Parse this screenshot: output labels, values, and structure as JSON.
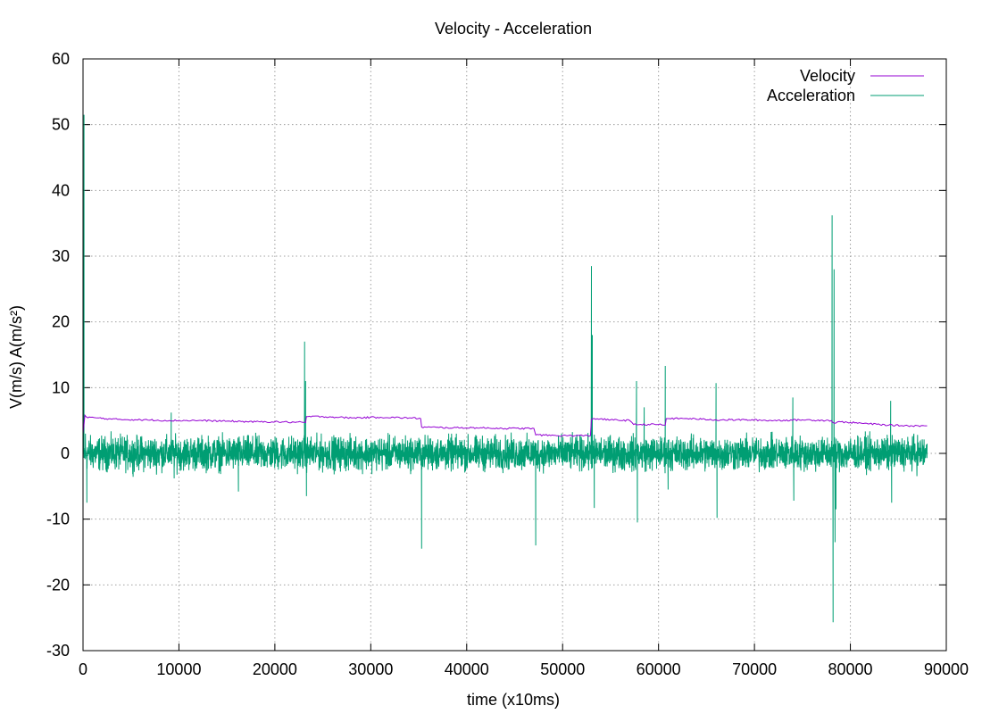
{
  "chart_data": {
    "type": "line",
    "title": "Velocity - Acceleration",
    "xlabel": "time (x10ms)",
    "ylabel": "V(m/s) A(m/s²)",
    "xlim": [
      0,
      90000
    ],
    "ylim": [
      -30,
      60
    ],
    "xticks": [
      0,
      10000,
      20000,
      30000,
      40000,
      50000,
      60000,
      70000,
      80000,
      90000
    ],
    "yticks": [
      -30,
      -20,
      -10,
      0,
      10,
      20,
      30,
      40,
      50,
      60
    ],
    "grid": true,
    "legend": "top-right",
    "series": [
      {
        "name": "Velocity",
        "color": "#9400d3",
        "x": [
          0,
          200,
          300,
          500,
          800,
          1500,
          3000,
          6000,
          9000,
          12000,
          15000,
          18000,
          20000,
          23200,
          23300,
          25000,
          28000,
          31000,
          34000,
          35200,
          35300,
          38000,
          41000,
          44000,
          47000,
          47200,
          50000,
          52900,
          53000,
          53300,
          55000,
          57000,
          57400,
          60000,
          60700,
          60800,
          63000,
          66000,
          69000,
          72000,
          75000,
          78000,
          78300,
          79000,
          80000,
          82000,
          84000,
          86000,
          88000
        ],
        "y": [
          3,
          5.8,
          5.6,
          5.4,
          5.5,
          5.4,
          5.2,
          5.1,
          5.0,
          5.0,
          4.9,
          4.8,
          4.8,
          4.7,
          5.6,
          5.6,
          5.4,
          5.5,
          5.4,
          5.3,
          4.0,
          3.9,
          3.9,
          3.8,
          3.8,
          2.8,
          2.7,
          2.7,
          5.2,
          5.3,
          5.1,
          5.0,
          4.4,
          4.4,
          4.3,
          5.3,
          5.3,
          5.1,
          5.1,
          5.0,
          5.1,
          5.0,
          4.6,
          4.8,
          4.7,
          4.5,
          4.3,
          4.2,
          4.2
        ]
      },
      {
        "name": "Acceleration",
        "color": "#009e73",
        "amplitude": 2.5,
        "spikes": [
          {
            "x": 100,
            "y": 51.5
          },
          {
            "x": 250,
            "y": 3
          },
          {
            "x": 400,
            "y": -7.5
          },
          {
            "x": 9200,
            "y": 6.2
          },
          {
            "x": 9500,
            "y": -3.8
          },
          {
            "x": 16200,
            "y": -5.8
          },
          {
            "x": 23100,
            "y": 17
          },
          {
            "x": 23200,
            "y": 11
          },
          {
            "x": 23300,
            "y": -6.5
          },
          {
            "x": 35300,
            "y": -14.5
          },
          {
            "x": 47200,
            "y": -14
          },
          {
            "x": 53000,
            "y": 28.5
          },
          {
            "x": 53100,
            "y": 18
          },
          {
            "x": 53300,
            "y": -8.3
          },
          {
            "x": 57700,
            "y": 11
          },
          {
            "x": 57800,
            "y": -10.5
          },
          {
            "x": 58500,
            "y": 7
          },
          {
            "x": 60700,
            "y": 13.3
          },
          {
            "x": 61000,
            "y": -5.5
          },
          {
            "x": 66000,
            "y": 10.7
          },
          {
            "x": 66100,
            "y": -9.8
          },
          {
            "x": 74000,
            "y": 8.5
          },
          {
            "x": 74100,
            "y": -7.2
          },
          {
            "x": 78100,
            "y": 36.2
          },
          {
            "x": 78200,
            "y": -25.7
          },
          {
            "x": 78300,
            "y": 28
          },
          {
            "x": 78400,
            "y": -13.5
          },
          {
            "x": 78500,
            "y": -8.5
          },
          {
            "x": 84200,
            "y": 8
          },
          {
            "x": 84300,
            "y": -7.5
          }
        ]
      }
    ]
  }
}
